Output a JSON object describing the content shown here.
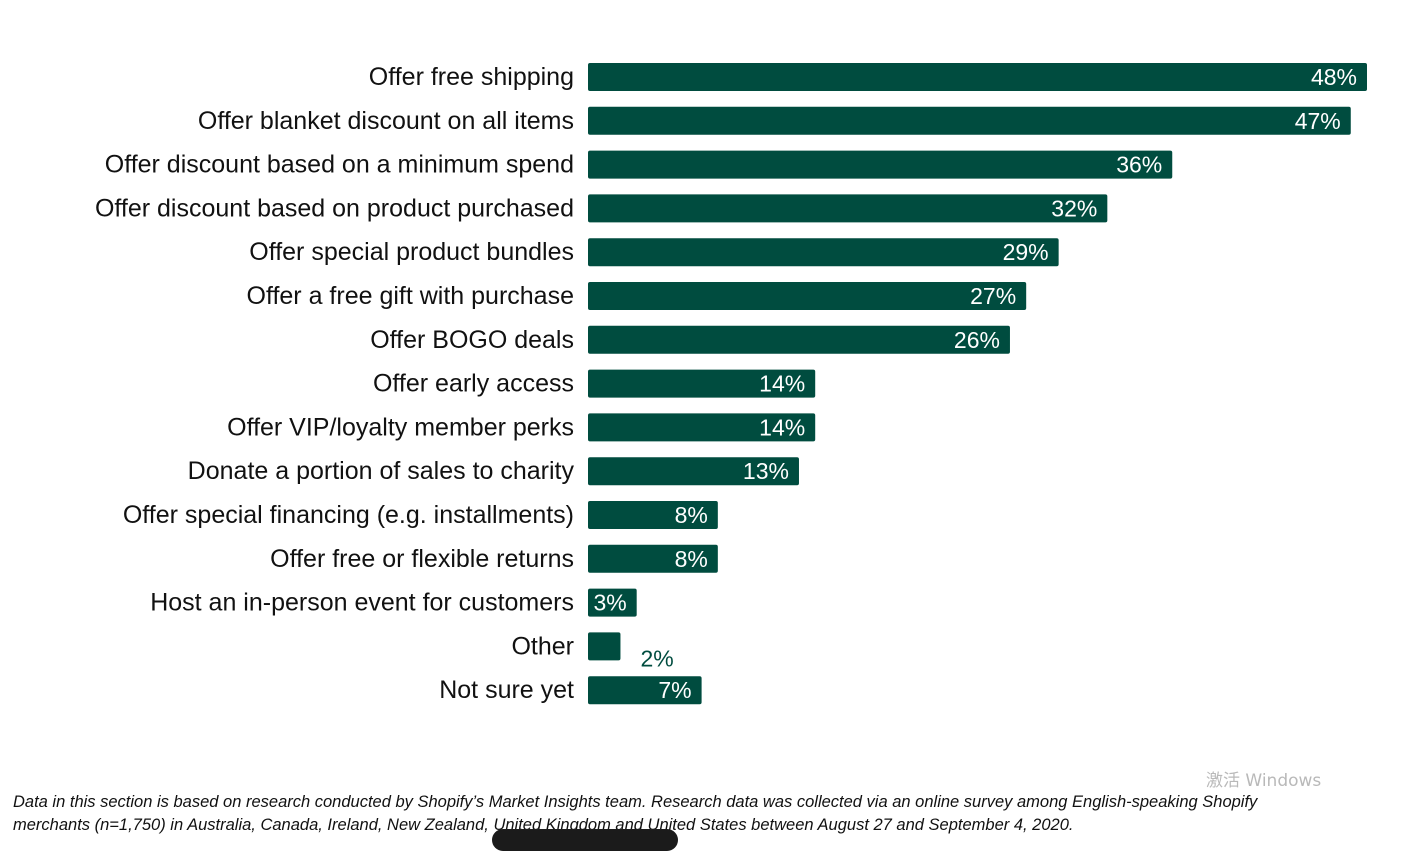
{
  "chart_data": {
    "type": "bar",
    "orientation": "horizontal",
    "categories": [
      "Offer free shipping",
      "Offer blanket discount on all items",
      "Offer discount based on a minimum spend",
      "Offer discount based on product purchased",
      "Offer special product bundles",
      "Offer a free gift with purchase",
      "Offer BOGO deals",
      "Offer early access",
      "Offer VIP/loyalty member perks",
      "Donate a portion of sales to charity",
      "Offer special financing (e.g. installments)",
      "Offer free or flexible returns",
      "Host an in-person event for customers",
      "Other",
      "Not sure yet"
    ],
    "values": [
      48,
      47,
      36,
      32,
      29,
      27,
      26,
      14,
      14,
      13,
      8,
      8,
      3,
      2,
      7
    ],
    "value_labels": [
      "48%",
      "47%",
      "36%",
      "32%",
      "29%",
      "27%",
      "26%",
      "14%",
      "14%",
      "13%",
      "8%",
      "8%",
      "3%",
      "2%",
      "7%"
    ],
    "unit": "%",
    "xlim": [
      0,
      48
    ],
    "grid": false,
    "legend": "none",
    "bar_color": "#004c3f",
    "inside_label_color": "#ffffff",
    "outside_label_color": "#004c3f"
  },
  "footnote": {
    "line1": "Data in this section is based on research conducted by Shopify’s Market Insights team. Research data was collected via an online survey among English-speaking Shopify",
    "line2": "merchants (n=1,750) in Australia, Canada, Ireland, New Zealand, United Kingdom and United States between August 27 and September 4, 2020."
  },
  "watermark": {
    "text": "激活 Windows"
  }
}
